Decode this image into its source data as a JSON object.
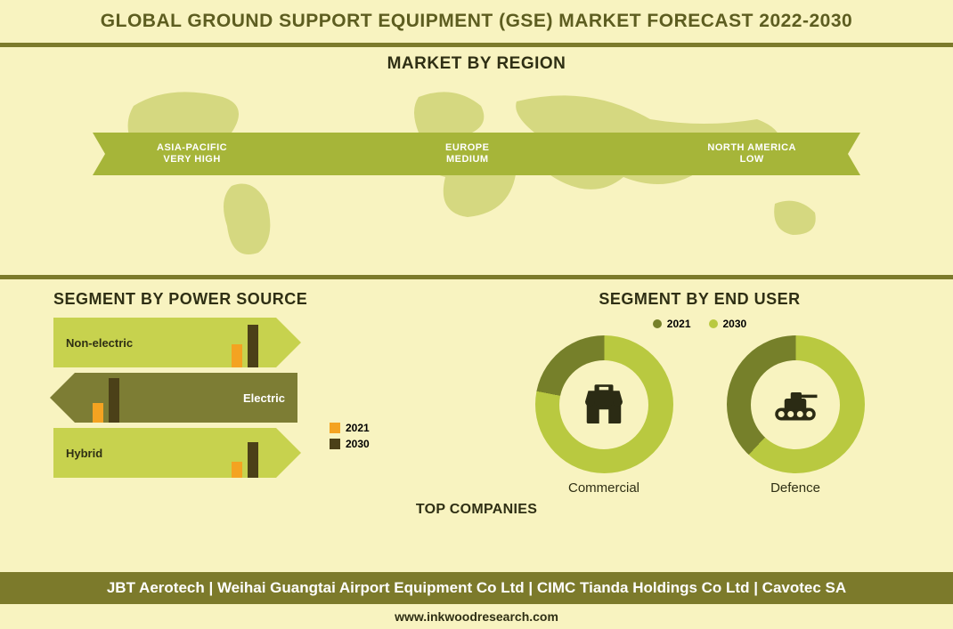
{
  "colors": {
    "page_bg": "#f8f3c0",
    "header_bg": "#f8f3c0",
    "header_text": "#5d5d20",
    "band_bg": "#f8f3c0",
    "band_border": "#7c7a2b",
    "region_title": "#2f2f14",
    "map_fill": "#b9c24d",
    "ribbon_bar": "#a6b539",
    "ribbon_text": "#ffffff",
    "seg_title": "#2f2f14",
    "fold_light": "#c7d24e",
    "fold_dark": "#7d7d34",
    "ps_bar_2021": "#f4a321",
    "ps_bar_2030": "#4b4018",
    "donut_outer": "#b9c940",
    "donut_inner_bg": "#f8f3c0",
    "donut_accent": "#76802a",
    "icon": "#2b2b14",
    "footer_bg": "#7c7a2b",
    "footer_text": "#ffffff",
    "body_text": "#2f2f14"
  },
  "header": {
    "title": "GLOBAL GROUND SUPPORT EQUIPMENT (GSE) MARKET FORECAST 2022-2030"
  },
  "region": {
    "title": "MARKET BY REGION",
    "items": [
      {
        "line1": "ASIA-PACIFIC",
        "line2": "VERY HIGH"
      },
      {
        "line1": "EUROPE",
        "line2": "MEDIUM"
      },
      {
        "line1": "NORTH AMERICA",
        "line2": "LOW"
      }
    ]
  },
  "power": {
    "title": "SEGMENT BY POWER SOURCE",
    "legend_2021": "2021",
    "legend_2030": "2030",
    "rows": [
      {
        "label": "Non-electric",
        "dir": "r",
        "shade": "light",
        "bar2021_h": 26,
        "bar2030_h": 48
      },
      {
        "label": "Electric",
        "dir": "l",
        "shade": "dark",
        "bar2021_h": 22,
        "bar2030_h": 50
      },
      {
        "label": "Hybrid",
        "dir": "r",
        "shade": "light",
        "bar2021_h": 18,
        "bar2030_h": 40
      }
    ]
  },
  "enduser": {
    "title": "SEGMENT BY END USER",
    "legend_2021": "2021",
    "legend_2030": "2030",
    "items": [
      {
        "label": "Commercial",
        "icon": "shop",
        "pct2030": 0.78
      },
      {
        "label": "Defence",
        "icon": "tank",
        "pct2030": 0.62
      }
    ]
  },
  "topcompanies": {
    "title": "TOP COMPANIES",
    "line": "JBT Aerotech | Weihai Guangtai Airport Equipment Co Ltd | CIMC Tianda Holdings Co Ltd |  Cavotec SA"
  },
  "footer_url": "www.inkwoodresearch.com"
}
